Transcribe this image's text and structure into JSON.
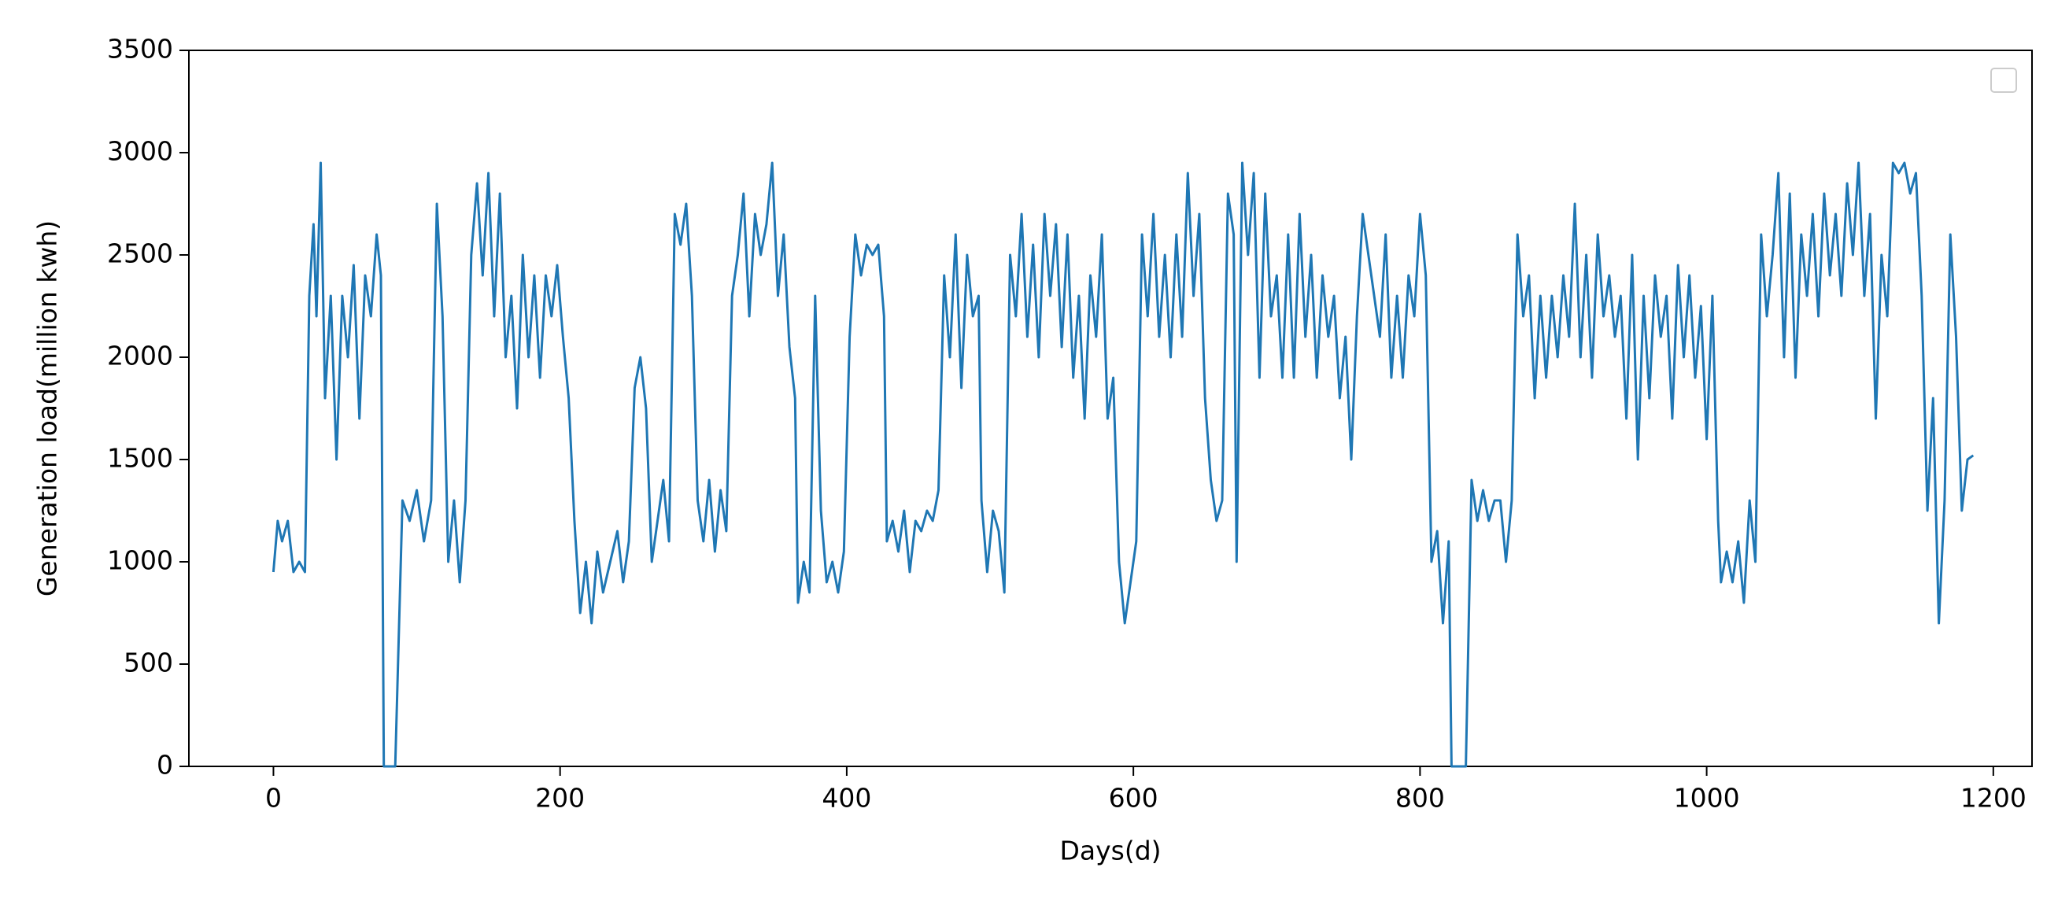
{
  "chart_data": {
    "type": "line",
    "xlabel": "Days(d)",
    "ylabel": "Generation load(million kwh)",
    "xlim": [
      -59,
      1227
    ],
    "ylim": [
      0,
      3500
    ],
    "xticks": [
      0,
      200,
      400,
      600,
      800,
      1000,
      1200
    ],
    "yticks": [
      0,
      500,
      1000,
      1500,
      2000,
      2500,
      3000,
      3500
    ],
    "grid": false,
    "series": [
      {
        "color": "#1f77b4",
        "x": [
          0,
          3,
          6,
          10,
          14,
          18,
          22,
          25,
          28,
          30,
          33,
          36,
          40,
          44,
          48,
          52,
          56,
          60,
          64,
          68,
          72,
          75,
          77,
          85,
          90,
          95,
          100,
          105,
          110,
          114,
          118,
          122,
          126,
          130,
          134,
          138,
          142,
          146,
          150,
          154,
          158,
          162,
          166,
          170,
          174,
          178,
          182,
          186,
          190,
          194,
          198,
          202,
          206,
          210,
          214,
          218,
          222,
          226,
          230,
          235,
          240,
          244,
          248,
          252,
          256,
          260,
          264,
          268,
          272,
          276,
          280,
          284,
          288,
          292,
          296,
          300,
          304,
          308,
          312,
          316,
          320,
          324,
          328,
          332,
          336,
          340,
          344,
          348,
          352,
          356,
          360,
          364,
          366,
          370,
          374,
          378,
          382,
          386,
          390,
          394,
          398,
          402,
          406,
          410,
          414,
          418,
          422,
          426,
          428,
          432,
          436,
          440,
          444,
          448,
          452,
          456,
          460,
          464,
          468,
          472,
          476,
          480,
          484,
          488,
          492,
          494,
          498,
          502,
          506,
          510,
          514,
          518,
          522,
          526,
          530,
          534,
          538,
          542,
          546,
          550,
          554,
          558,
          562,
          566,
          570,
          574,
          578,
          582,
          586,
          590,
          594,
          598,
          602,
          606,
          610,
          614,
          618,
          622,
          626,
          630,
          634,
          638,
          642,
          646,
          650,
          654,
          658,
          662,
          666,
          670,
          672,
          676,
          680,
          684,
          688,
          692,
          696,
          700,
          704,
          708,
          712,
          716,
          720,
          724,
          728,
          732,
          736,
          740,
          744,
          748,
          752,
          756,
          760,
          764,
          768,
          772,
          776,
          780,
          784,
          788,
          792,
          796,
          800,
          804,
          808,
          812,
          816,
          820,
          822,
          832,
          836,
          840,
          844,
          848,
          852,
          856,
          860,
          864,
          868,
          872,
          876,
          880,
          884,
          888,
          892,
          896,
          900,
          904,
          908,
          912,
          916,
          920,
          924,
          928,
          932,
          936,
          940,
          944,
          948,
          952,
          956,
          960,
          964,
          968,
          972,
          976,
          980,
          984,
          988,
          992,
          996,
          1000,
          1004,
          1008,
          1010,
          1014,
          1018,
          1022,
          1026,
          1030,
          1034,
          1038,
          1042,
          1046,
          1050,
          1054,
          1058,
          1062,
          1066,
          1070,
          1074,
          1078,
          1082,
          1086,
          1090,
          1094,
          1098,
          1102,
          1106,
          1110,
          1114,
          1118,
          1122,
          1126,
          1130,
          1134,
          1138,
          1142,
          1146,
          1150,
          1154,
          1158,
          1162,
          1166,
          1170,
          1174,
          1178,
          1182,
          1186
        ],
        "values": [
          950,
          1200,
          1100,
          1200,
          950,
          1000,
          950,
          2300,
          2650,
          2200,
          2950,
          1800,
          2300,
          1500,
          2300,
          2000,
          2450,
          1700,
          2400,
          2200,
          2600,
          2400,
          0,
          0,
          1300,
          1200,
          1350,
          1100,
          1300,
          2750,
          2200,
          1000,
          1300,
          900,
          1300,
          2500,
          2850,
          2400,
          2900,
          2200,
          2800,
          2000,
          2300,
          1750,
          2500,
          2000,
          2400,
          1900,
          2400,
          2200,
          2450,
          2100,
          1800,
          1200,
          750,
          1000,
          700,
          1050,
          850,
          1000,
          1150,
          900,
          1100,
          1850,
          2000,
          1750,
          1000,
          1200,
          1400,
          1100,
          2700,
          2550,
          2750,
          2300,
          1300,
          1100,
          1400,
          1050,
          1350,
          1150,
          2300,
          2500,
          2800,
          2200,
          2700,
          2500,
          2650,
          2950,
          2300,
          2600,
          2050,
          1800,
          800,
          1000,
          850,
          2300,
          1250,
          900,
          1000,
          850,
          1050,
          2100,
          2600,
          2400,
          2550,
          2500,
          2550,
          2200,
          1100,
          1200,
          1050,
          1250,
          950,
          1200,
          1150,
          1250,
          1200,
          1350,
          2400,
          2000,
          2600,
          1850,
          2500,
          2200,
          2300,
          1300,
          950,
          1250,
          1150,
          850,
          2500,
          2200,
          2700,
          2100,
          2550,
          2000,
          2700,
          2300,
          2650,
          2050,
          2600,
          1900,
          2300,
          1700,
          2400,
          2100,
          2600,
          1700,
          1900,
          1000,
          700,
          900,
          1100,
          2600,
          2200,
          2700,
          2100,
          2500,
          2000,
          2600,
          2100,
          2900,
          2300,
          2700,
          1800,
          1400,
          1200,
          1300,
          2800,
          2600,
          1000,
          2950,
          2500,
          2900,
          1900,
          2800,
          2200,
          2400,
          1900,
          2600,
          1900,
          2700,
          2100,
          2500,
          1900,
          2400,
          2100,
          2300,
          1800,
          2100,
          1500,
          2200,
          2700,
          2500,
          2300,
          2100,
          2600,
          1900,
          2300,
          1900,
          2400,
          2200,
          2700,
          2400,
          1000,
          1150,
          700,
          1100,
          0,
          0,
          1400,
          1200,
          1350,
          1200,
          1300,
          1300,
          1000,
          1300,
          2600,
          2200,
          2400,
          1800,
          2300,
          1900,
          2300,
          2000,
          2400,
          2100,
          2750,
          2000,
          2500,
          1900,
          2600,
          2200,
          2400,
          2100,
          2300,
          1700,
          2500,
          1500,
          2300,
          1800,
          2400,
          2100,
          2300,
          1700,
          2450,
          2000,
          2400,
          1900,
          2250,
          1600,
          2300,
          1200,
          900,
          1050,
          900,
          1100,
          800,
          1300,
          1000,
          2600,
          2200,
          2500,
          2900,
          2000,
          2800,
          1900,
          2600,
          2300,
          2700,
          2200,
          2800,
          2400,
          2700,
          2300,
          2850,
          2500,
          2950,
          2300,
          2700,
          1700,
          2500,
          2200,
          2950,
          2900,
          2950,
          2800,
          2900,
          2300,
          1250,
          1800,
          700,
          1300,
          2600,
          2100,
          1250,
          1500,
          1520
        ]
      }
    ]
  }
}
